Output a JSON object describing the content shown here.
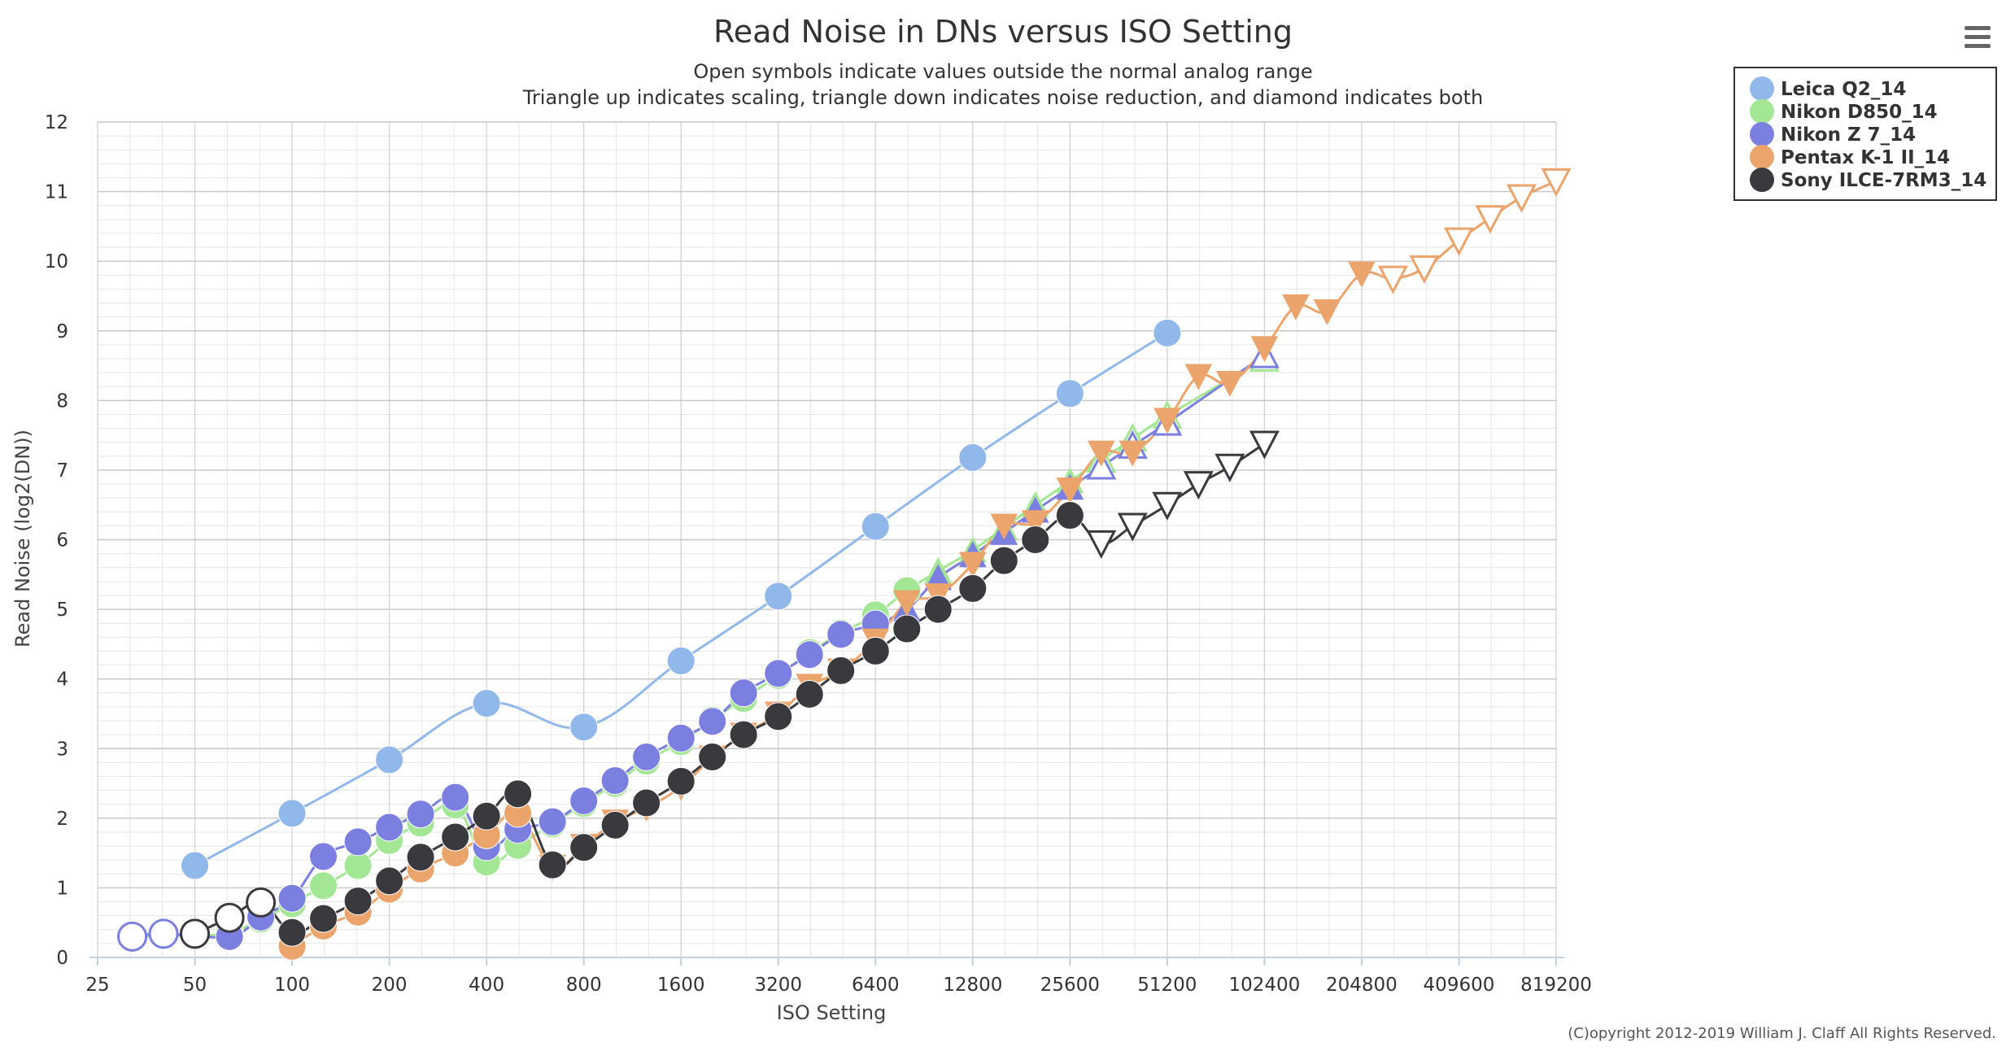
{
  "chart_data": {
    "type": "line",
    "title": "Read Noise in DNs versus ISO Setting",
    "subtitle": [
      "Open symbols indicate values outside the normal analog range",
      "Triangle up indicates scaling, triangle down indicates noise reduction, and diamond indicates both"
    ],
    "xlabel": "ISO Setting",
    "ylabel": "Read Noise (log2(DN))",
    "x_scale": "log2",
    "xlim": [
      25,
      819200
    ],
    "ylim": [
      0,
      12
    ],
    "x_ticks": [
      25,
      50,
      100,
      200,
      400,
      800,
      1600,
      3200,
      6400,
      12800,
      25600,
      51200,
      102400,
      204800,
      409600,
      819200
    ],
    "y_ticks": [
      0,
      1,
      2,
      3,
      4,
      5,
      6,
      7,
      8,
      9,
      10,
      11,
      12
    ],
    "grid": true,
    "legend_position": "top-right",
    "credits": "(C)opyright 2012-2019 William J. Claff All Rights Reserved.",
    "menu_icon": "hamburger-menu-icon",
    "series": [
      {
        "name": "Leica Q2_14",
        "color": "#90b8ea",
        "points": [
          {
            "x": 50,
            "y": 1.32
          },
          {
            "x": 100,
            "y": 2.07
          },
          {
            "x": 200,
            "y": 2.84
          },
          {
            "x": 400,
            "y": 3.65
          },
          {
            "x": 800,
            "y": 3.31
          },
          {
            "x": 1600,
            "y": 4.26
          },
          {
            "x": 3200,
            "y": 5.19
          },
          {
            "x": 6400,
            "y": 6.19
          },
          {
            "x": 12800,
            "y": 7.18
          },
          {
            "x": 25600,
            "y": 8.1
          },
          {
            "x": 51200,
            "y": 8.97
          }
        ]
      },
      {
        "name": "Nikon D850_14",
        "color": "#a3e693",
        "points": [
          {
            "x": 32,
            "y": 0.3,
            "m": "circle",
            "open": true
          },
          {
            "x": 50,
            "y": 0.32
          },
          {
            "x": 64,
            "y": 0.35
          },
          {
            "x": 80,
            "y": 0.55
          },
          {
            "x": 100,
            "y": 0.77
          },
          {
            "x": 125,
            "y": 1.03
          },
          {
            "x": 160,
            "y": 1.32
          },
          {
            "x": 200,
            "y": 1.68
          },
          {
            "x": 250,
            "y": 1.93
          },
          {
            "x": 320,
            "y": 2.19
          },
          {
            "x": 400,
            "y": 1.37
          },
          {
            "x": 500,
            "y": 1.61
          },
          {
            "x": 640,
            "y": 1.92
          },
          {
            "x": 800,
            "y": 2.21
          },
          {
            "x": 1000,
            "y": 2.5
          },
          {
            "x": 1250,
            "y": 2.82
          },
          {
            "x": 1600,
            "y": 3.1
          },
          {
            "x": 2000,
            "y": 3.41
          },
          {
            "x": 2500,
            "y": 3.72
          },
          {
            "x": 3200,
            "y": 4.05
          },
          {
            "x": 4000,
            "y": 4.38
          },
          {
            "x": 5000,
            "y": 4.66
          },
          {
            "x": 6400,
            "y": 4.92
          },
          {
            "x": 8000,
            "y": 5.27
          },
          {
            "x": 10000,
            "y": 5.55,
            "m": "tri-up"
          },
          {
            "x": 12800,
            "y": 5.85,
            "m": "tri-up"
          },
          {
            "x": 16000,
            "y": 6.17,
            "m": "tri-up"
          },
          {
            "x": 20000,
            "y": 6.5,
            "m": "tri-up"
          },
          {
            "x": 25600,
            "y": 6.84,
            "m": "tri-up"
          },
          {
            "x": 32000,
            "y": 7.15,
            "m": "tri-up",
            "open": true
          },
          {
            "x": 40000,
            "y": 7.45,
            "m": "tri-up",
            "open": true
          },
          {
            "x": 51200,
            "y": 7.78,
            "m": "tri-up",
            "open": true
          },
          {
            "x": 102400,
            "y": 8.6,
            "m": "tri-up",
            "open": true
          }
        ]
      },
      {
        "name": "Nikon Z 7_14",
        "color": "#7b7fe0",
        "points": [
          {
            "x": 32,
            "y": 0.3,
            "m": "circle",
            "open": true
          },
          {
            "x": 40,
            "y": 0.34,
            "m": "circle",
            "open": true
          },
          {
            "x": 64,
            "y": 0.3
          },
          {
            "x": 80,
            "y": 0.58
          },
          {
            "x": 100,
            "y": 0.85
          },
          {
            "x": 125,
            "y": 1.45
          },
          {
            "x": 160,
            "y": 1.66
          },
          {
            "x": 200,
            "y": 1.87
          },
          {
            "x": 250,
            "y": 2.06
          },
          {
            "x": 320,
            "y": 2.3
          },
          {
            "x": 400,
            "y": 1.59
          },
          {
            "x": 500,
            "y": 1.84
          },
          {
            "x": 640,
            "y": 1.95
          },
          {
            "x": 800,
            "y": 2.25
          },
          {
            "x": 1000,
            "y": 2.54
          },
          {
            "x": 1250,
            "y": 2.88
          },
          {
            "x": 1600,
            "y": 3.15
          },
          {
            "x": 2000,
            "y": 3.39
          },
          {
            "x": 2500,
            "y": 3.8
          },
          {
            "x": 3200,
            "y": 4.08
          },
          {
            "x": 4000,
            "y": 4.35
          },
          {
            "x": 5000,
            "y": 4.64
          },
          {
            "x": 6400,
            "y": 4.79
          },
          {
            "x": 8000,
            "y": 5.0,
            "m": "tri-up"
          },
          {
            "x": 10000,
            "y": 5.45,
            "m": "tri-up"
          },
          {
            "x": 12800,
            "y": 5.78,
            "m": "tri-up"
          },
          {
            "x": 16000,
            "y": 6.1,
            "m": "tri-up"
          },
          {
            "x": 20000,
            "y": 6.42,
            "m": "tri-up"
          },
          {
            "x": 25600,
            "y": 6.75,
            "m": "tri-up"
          },
          {
            "x": 32000,
            "y": 7.05,
            "m": "tri-up",
            "open": true
          },
          {
            "x": 40000,
            "y": 7.35,
            "m": "tri-up",
            "open": true
          },
          {
            "x": 51200,
            "y": 7.68,
            "m": "tri-up",
            "open": true
          },
          {
            "x": 102400,
            "y": 8.65,
            "m": "tri-up",
            "open": true
          }
        ]
      },
      {
        "name": "Pentax K-1 II_14",
        "color": "#eba46c",
        "points": [
          {
            "x": 100,
            "y": 0.16
          },
          {
            "x": 125,
            "y": 0.45
          },
          {
            "x": 160,
            "y": 0.65
          },
          {
            "x": 200,
            "y": 0.98
          },
          {
            "x": 250,
            "y": 1.27
          },
          {
            "x": 320,
            "y": 1.5
          },
          {
            "x": 400,
            "y": 1.76
          },
          {
            "x": 500,
            "y": 2.07
          },
          {
            "x": 640,
            "y": 1.3,
            "m": "tri-down"
          },
          {
            "x": 800,
            "y": 1.6,
            "m": "tri-down"
          },
          {
            "x": 1000,
            "y": 1.95,
            "m": "tri-down"
          },
          {
            "x": 1250,
            "y": 2.15,
            "m": "tri-down"
          },
          {
            "x": 1600,
            "y": 2.45,
            "m": "tri-down"
          },
          {
            "x": 2000,
            "y": 2.87,
            "m": "tri-down"
          },
          {
            "x": 2500,
            "y": 3.2,
            "m": "tri-down"
          },
          {
            "x": 3200,
            "y": 3.5,
            "m": "tri-down"
          },
          {
            "x": 4000,
            "y": 3.9,
            "m": "tri-down"
          },
          {
            "x": 5000,
            "y": 4.12,
            "m": "tri-down"
          },
          {
            "x": 6400,
            "y": 4.55,
            "m": "tri-down"
          },
          {
            "x": 8000,
            "y": 5.1,
            "m": "tri-down"
          },
          {
            "x": 10000,
            "y": 5.2,
            "m": "tri-down"
          },
          {
            "x": 12800,
            "y": 5.65,
            "m": "tri-down"
          },
          {
            "x": 16000,
            "y": 6.2,
            "m": "tri-down"
          },
          {
            "x": 20000,
            "y": 6.25,
            "m": "tri-down"
          },
          {
            "x": 25600,
            "y": 6.72,
            "m": "tri-down"
          },
          {
            "x": 32000,
            "y": 7.25,
            "m": "tri-down"
          },
          {
            "x": 40000,
            "y": 7.25,
            "m": "tri-down"
          },
          {
            "x": 51200,
            "y": 7.72,
            "m": "tri-down"
          },
          {
            "x": 64000,
            "y": 8.35,
            "m": "tri-down"
          },
          {
            "x": 80000,
            "y": 8.25,
            "m": "tri-down"
          },
          {
            "x": 102400,
            "y": 8.75,
            "m": "tri-down"
          },
          {
            "x": 128000,
            "y": 9.35,
            "m": "tri-down"
          },
          {
            "x": 160000,
            "y": 9.28,
            "m": "tri-down"
          },
          {
            "x": 204800,
            "y": 9.82,
            "m": "tri-down"
          },
          {
            "x": 256000,
            "y": 9.75,
            "m": "tri-down",
            "open": true
          },
          {
            "x": 320000,
            "y": 9.9,
            "m": "tri-down",
            "open": true
          },
          {
            "x": 409600,
            "y": 10.3,
            "m": "tri-down",
            "open": true
          },
          {
            "x": 512000,
            "y": 10.62,
            "m": "tri-down",
            "open": true
          },
          {
            "x": 640000,
            "y": 10.92,
            "m": "tri-down",
            "open": true
          },
          {
            "x": 819200,
            "y": 11.15,
            "m": "tri-down",
            "open": true
          }
        ]
      },
      {
        "name": "Sony ILCE-7RM3_14",
        "color": "#3a3a3e",
        "points": [
          {
            "x": 50,
            "y": 0.34,
            "m": "circle",
            "open": true
          },
          {
            "x": 64,
            "y": 0.57,
            "m": "circle",
            "open": true
          },
          {
            "x": 80,
            "y": 0.79,
            "m": "circle",
            "open": true
          },
          {
            "x": 100,
            "y": 0.36
          },
          {
            "x": 125,
            "y": 0.56
          },
          {
            "x": 160,
            "y": 0.81
          },
          {
            "x": 200,
            "y": 1.1
          },
          {
            "x": 250,
            "y": 1.44
          },
          {
            "x": 320,
            "y": 1.73
          },
          {
            "x": 400,
            "y": 2.03
          },
          {
            "x": 500,
            "y": 2.35
          },
          {
            "x": 640,
            "y": 1.33
          },
          {
            "x": 800,
            "y": 1.58
          },
          {
            "x": 1000,
            "y": 1.9
          },
          {
            "x": 1250,
            "y": 2.22
          },
          {
            "x": 1600,
            "y": 2.53
          },
          {
            "x": 2000,
            "y": 2.88
          },
          {
            "x": 2500,
            "y": 3.2
          },
          {
            "x": 3200,
            "y": 3.46
          },
          {
            "x": 4000,
            "y": 3.78
          },
          {
            "x": 5000,
            "y": 4.12
          },
          {
            "x": 6400,
            "y": 4.4
          },
          {
            "x": 8000,
            "y": 4.72
          },
          {
            "x": 10000,
            "y": 5.0
          },
          {
            "x": 12800,
            "y": 5.3
          },
          {
            "x": 16000,
            "y": 5.7
          },
          {
            "x": 20000,
            "y": 6.0
          },
          {
            "x": 25600,
            "y": 6.35
          },
          {
            "x": 32000,
            "y": 5.95,
            "m": "tri-down",
            "open": true
          },
          {
            "x": 40000,
            "y": 6.2,
            "m": "tri-down",
            "open": true
          },
          {
            "x": 51200,
            "y": 6.5,
            "m": "tri-down",
            "open": true
          },
          {
            "x": 64000,
            "y": 6.8,
            "m": "tri-down",
            "open": true
          },
          {
            "x": 80000,
            "y": 7.05,
            "m": "tri-down",
            "open": true
          },
          {
            "x": 102400,
            "y": 7.38,
            "m": "tri-down",
            "open": true
          }
        ]
      }
    ]
  }
}
